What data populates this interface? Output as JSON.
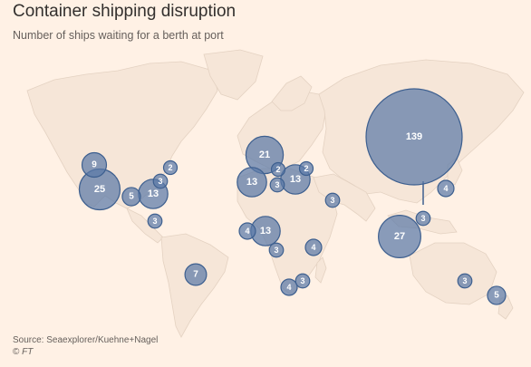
{
  "header": {
    "title": "Container shipping disruption",
    "subtitle": "Number of ships waiting for a berth at port"
  },
  "footer": {
    "source": "Source: Seaexplorer/Kuehne+Nagel",
    "copyright_symbol": "©",
    "copyright_name": "FT"
  },
  "colors": {
    "background": "#fff1e5",
    "land": "#f6e6d8",
    "bubble_fill": "#5b7aa8",
    "bubble_stroke": "#3d5f8f"
  },
  "ports": [
    {
      "label": "139"
    },
    {
      "label": "27"
    },
    {
      "label": "25"
    },
    {
      "label": "21"
    },
    {
      "label": "13"
    },
    {
      "label": "13"
    },
    {
      "label": "13"
    },
    {
      "label": "13"
    },
    {
      "label": "9"
    },
    {
      "label": "7"
    },
    {
      "label": "5"
    },
    {
      "label": "5"
    },
    {
      "label": "4"
    },
    {
      "label": "4"
    },
    {
      "label": "4"
    },
    {
      "label": "4"
    },
    {
      "label": "3"
    },
    {
      "label": "3"
    },
    {
      "label": "3"
    },
    {
      "label": "3"
    },
    {
      "label": "3"
    },
    {
      "label": "3"
    },
    {
      "label": "3"
    },
    {
      "label": "3"
    },
    {
      "label": "2"
    },
    {
      "label": "2"
    },
    {
      "label": "2"
    }
  ]
}
